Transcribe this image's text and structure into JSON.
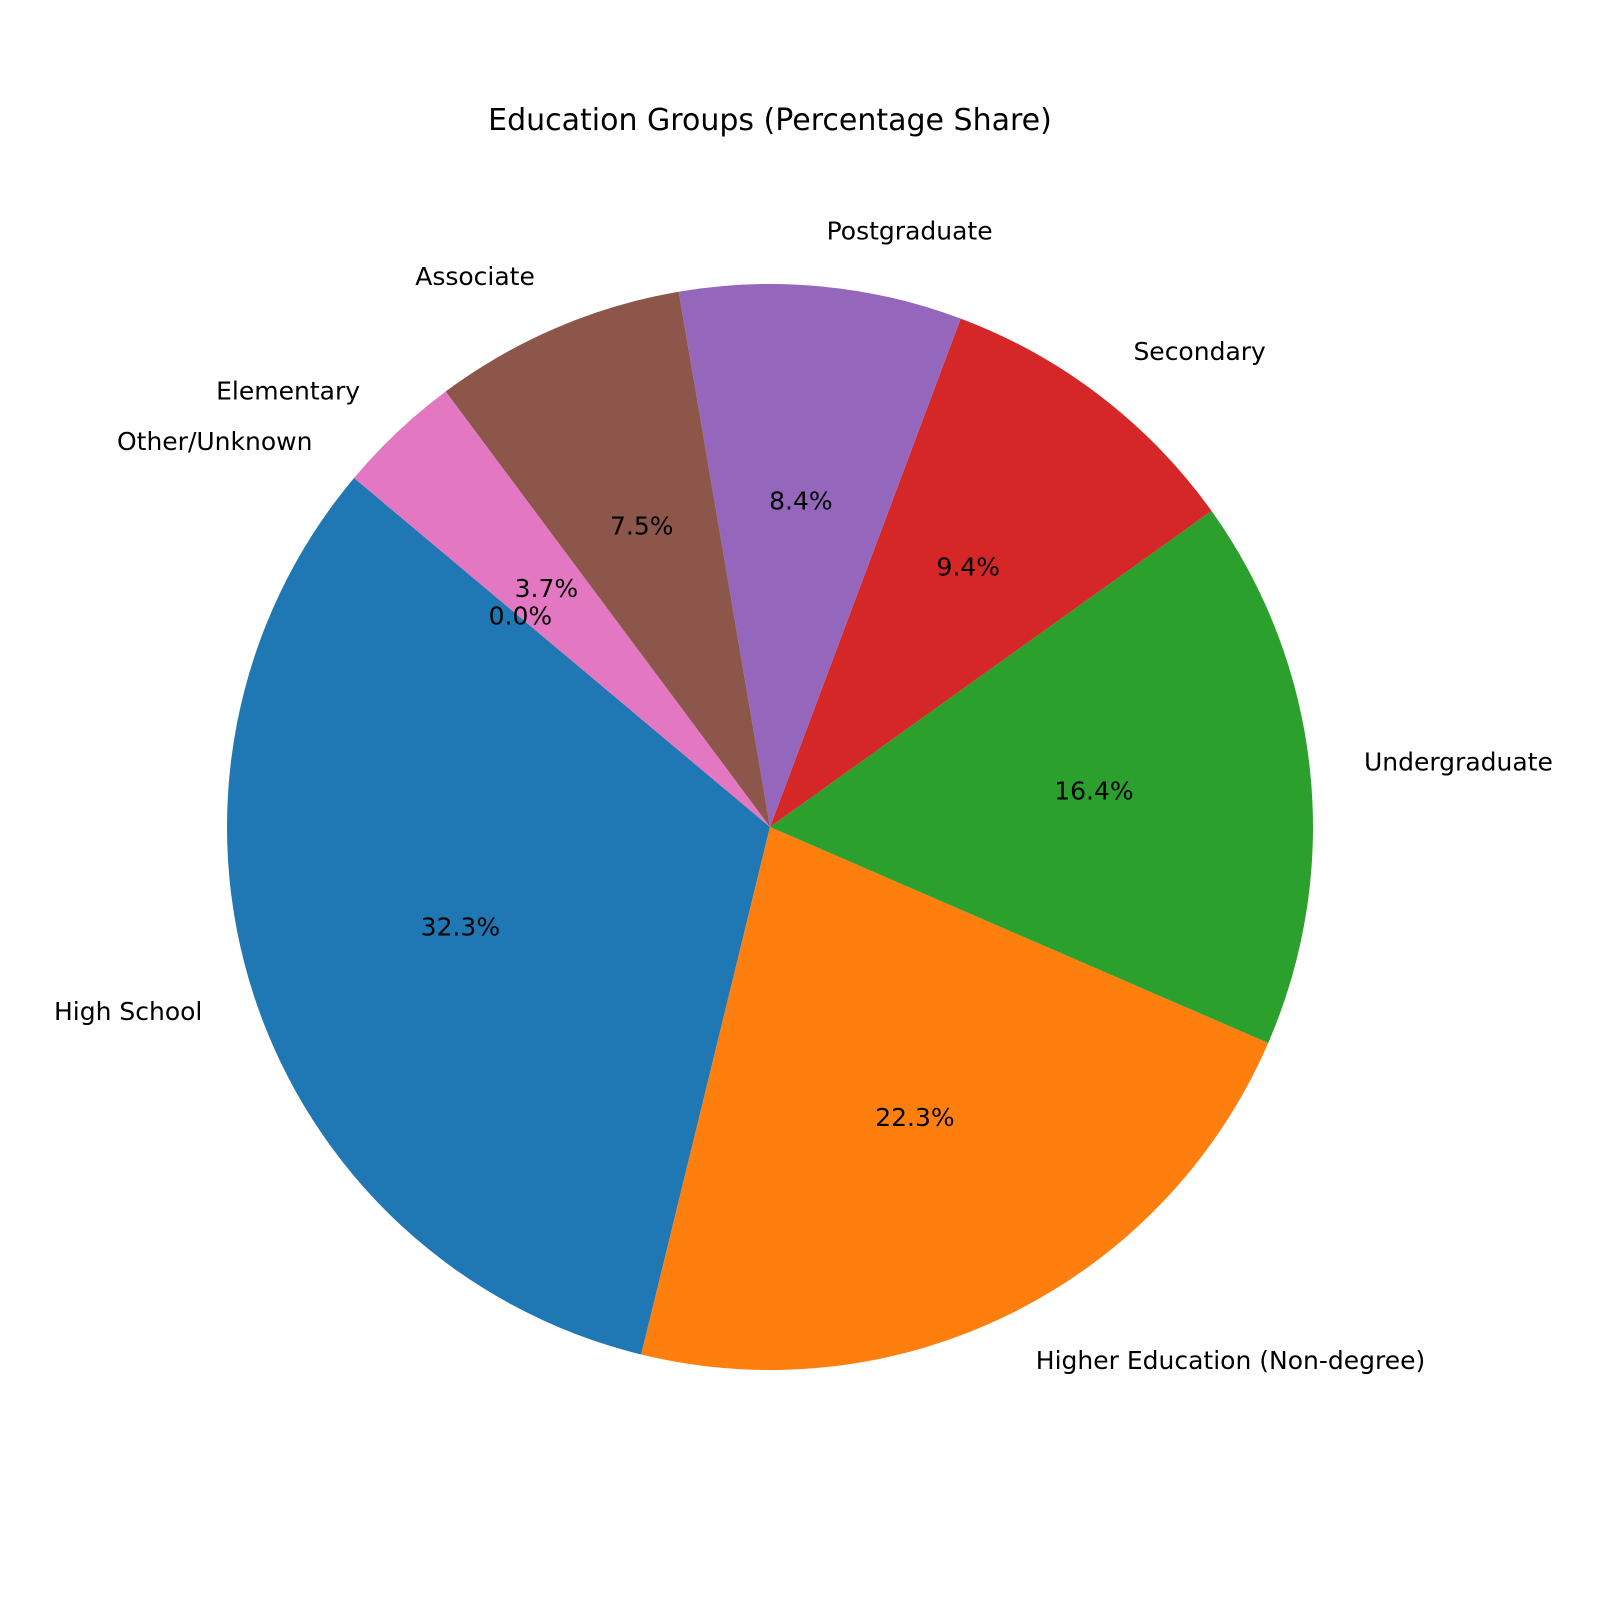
{
  "chart_data": {
    "type": "pie",
    "title": "Education Groups (Percentage Share)",
    "start_angle_deg": 140,
    "direction": "counterclockwise",
    "slices": [
      {
        "label": "High School",
        "value": 32.3,
        "pct_label": "32.3%",
        "color": "#1f77b4"
      },
      {
        "label": "Higher Education (Non-degree)",
        "value": 22.3,
        "pct_label": "22.3%",
        "color": "#ff7f0e"
      },
      {
        "label": "Undergraduate",
        "value": 16.4,
        "pct_label": "16.4%",
        "color": "#2ca02c"
      },
      {
        "label": "Secondary",
        "value": 9.4,
        "pct_label": "9.4%",
        "color": "#d62728"
      },
      {
        "label": "Postgraduate",
        "value": 8.4,
        "pct_label": "8.4%",
        "color": "#9467bd"
      },
      {
        "label": "Associate",
        "value": 7.5,
        "pct_label": "7.5%",
        "color": "#8c564b"
      },
      {
        "label": "Elementary",
        "value": 3.7,
        "pct_label": "3.7%",
        "color": "#e377c2"
      },
      {
        "label": "Other/Unknown",
        "value": 0.0,
        "pct_label": "0.0%",
        "color": "#7f7f7f"
      }
    ]
  }
}
